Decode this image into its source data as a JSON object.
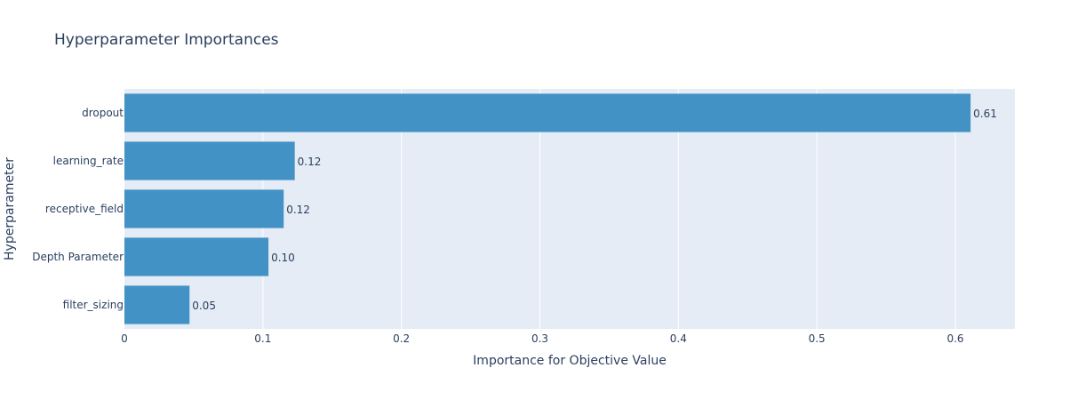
{
  "chart_data": {
    "type": "bar",
    "orientation": "horizontal",
    "title": "Hyperparameter Importances",
    "xlabel": "Importance for Objective Value",
    "ylabel": "Hyperparameter",
    "categories": [
      "dropout",
      "learning_rate",
      "receptive_field",
      "Depth Parameter",
      "filter_sizing"
    ],
    "values": [
      0.611,
      0.123,
      0.115,
      0.104,
      0.047
    ],
    "value_labels": [
      "0.61",
      "0.12",
      "0.12",
      "0.10",
      "0.05"
    ],
    "xlim": [
      0,
      0.643
    ],
    "xticks": [
      0,
      0.1,
      0.2,
      0.3,
      0.4,
      0.5,
      0.6
    ],
    "xtick_labels": [
      "0",
      "0.1",
      "0.2",
      "0.3",
      "0.4",
      "0.5",
      "0.6"
    ],
    "grid": true,
    "bar_color": "#4292c6",
    "plot_bg_color": "#e5ecf6"
  }
}
